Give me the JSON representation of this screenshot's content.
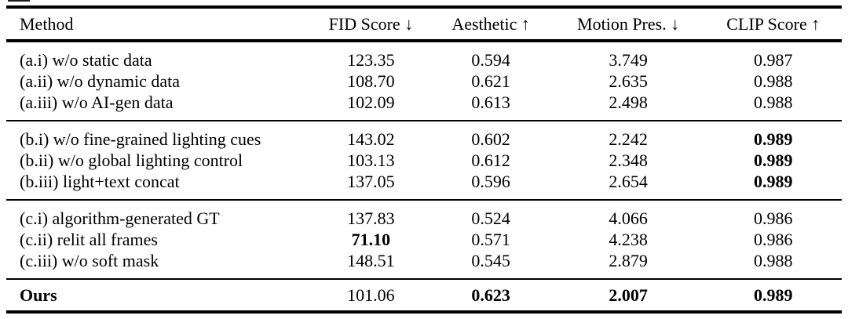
{
  "page": {
    "background": "#ffffff",
    "text_color": "#000000",
    "rule_color": "#000000"
  },
  "table": {
    "columns": [
      {
        "label": "Method"
      },
      {
        "label": "FID Score ↓"
      },
      {
        "label": "Aesthetic ↑"
      },
      {
        "label": "Motion Pres. ↓"
      },
      {
        "label": "CLIP Score ↑"
      }
    ],
    "groups": [
      {
        "rows": [
          {
            "method": "(a.i) w/o static data",
            "fid": "123.35",
            "aesthetic": "0.594",
            "motion": "3.749",
            "clip": "0.987"
          },
          {
            "method": "(a.ii) w/o dynamic data",
            "fid": "108.70",
            "aesthetic": "0.621",
            "motion": "2.635",
            "clip": "0.988"
          },
          {
            "method": "(a.iii) w/o AI-gen data",
            "fid": "102.09",
            "aesthetic": "0.613",
            "motion": "2.498",
            "clip": "0.988"
          }
        ]
      },
      {
        "rows": [
          {
            "method": "(b.i) w/o fine-grained lighting cues",
            "fid": "143.02",
            "aesthetic": "0.602",
            "motion": "2.242",
            "clip": "0.989"
          },
          {
            "method": "(b.ii) w/o global lighting control",
            "fid": "103.13",
            "aesthetic": "0.612",
            "motion": "2.348",
            "clip": "0.989"
          },
          {
            "method": "(b.iii) light+text concat",
            "fid": "137.05",
            "aesthetic": "0.596",
            "motion": "2.654",
            "clip": "0.989"
          }
        ]
      },
      {
        "rows": [
          {
            "method": "(c.i) algorithm-generated GT",
            "fid": "137.83",
            "aesthetic": "0.524",
            "motion": "4.066",
            "clip": "0.986"
          },
          {
            "method": "(c.ii) relit all frames",
            "fid": "71.10",
            "aesthetic": "0.571",
            "motion": "4.238",
            "clip": "0.986"
          },
          {
            "method": "(c.iii) w/o soft mask",
            "fid": "148.51",
            "aesthetic": "0.545",
            "motion": "2.879",
            "clip": "0.988"
          }
        ]
      }
    ],
    "ours": {
      "method": "Ours",
      "fid": "101.06",
      "aesthetic": "0.623",
      "motion": "2.007",
      "clip": "0.989"
    }
  }
}
